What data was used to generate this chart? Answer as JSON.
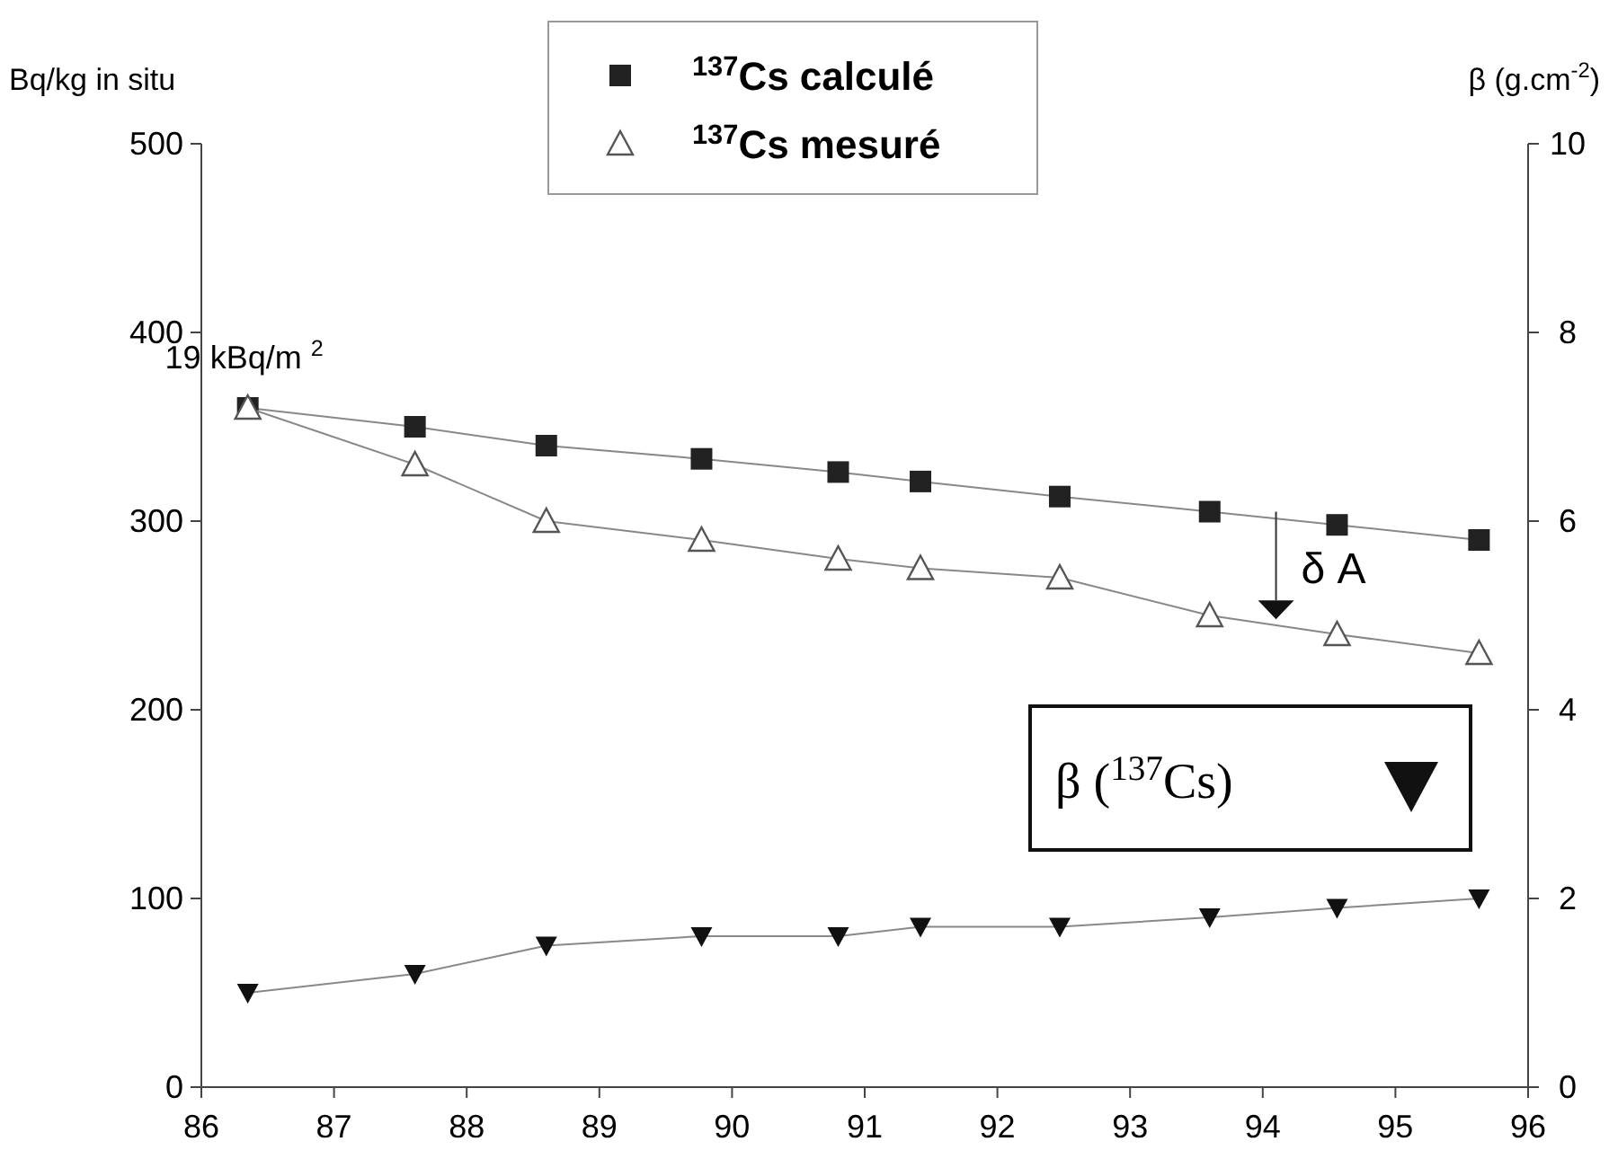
{
  "chart_data": {
    "type": "line",
    "ylabel": "Bq/kg in situ",
    "y2label": "β (g.cm$^{-2}$)",
    "x": [
      86.35,
      87.61,
      88.6,
      89.77,
      90.8,
      91.42,
      92.47,
      93.6,
      94.56,
      95.63
    ],
    "xlim": [
      86,
      96
    ],
    "xticks": [
      86,
      87,
      88,
      89,
      90,
      91,
      92,
      93,
      94,
      95,
      96
    ],
    "ylim": [
      0,
      500
    ],
    "yticks": [
      0,
      100,
      200,
      300,
      400,
      500
    ],
    "y2lim": [
      0,
      10
    ],
    "y2ticks": [
      0,
      2,
      4,
      6,
      8,
      10
    ],
    "grid": false,
    "legend": "top",
    "series": [
      {
        "name": "$^{137}$Cs calculé",
        "color": "#222222",
        "marker": "square",
        "values": [
          360,
          350,
          340,
          333,
          326,
          321,
          313,
          305,
          298,
          290
        ]
      },
      {
        "name": "$^{137}$Cs mesuré",
        "color": "#555555",
        "marker": "triangle",
        "values": [
          360,
          330,
          300,
          290,
          280,
          275,
          270,
          250,
          240,
          230
        ]
      },
      {
        "name": "β ($^{137}$Cs)",
        "color": "#111111",
        "marker": "triangle-down",
        "axis": "y2",
        "values": [
          1,
          1.2,
          1.5,
          1.6,
          1.6,
          1.7,
          1.7,
          1.8,
          1.9,
          2
        ]
      }
    ],
    "annotations": [
      {
        "text": "19 kBq/m $^{2}$",
        "x": 86.35,
        "y": 360
      },
      "δ A"
    ]
  }
}
